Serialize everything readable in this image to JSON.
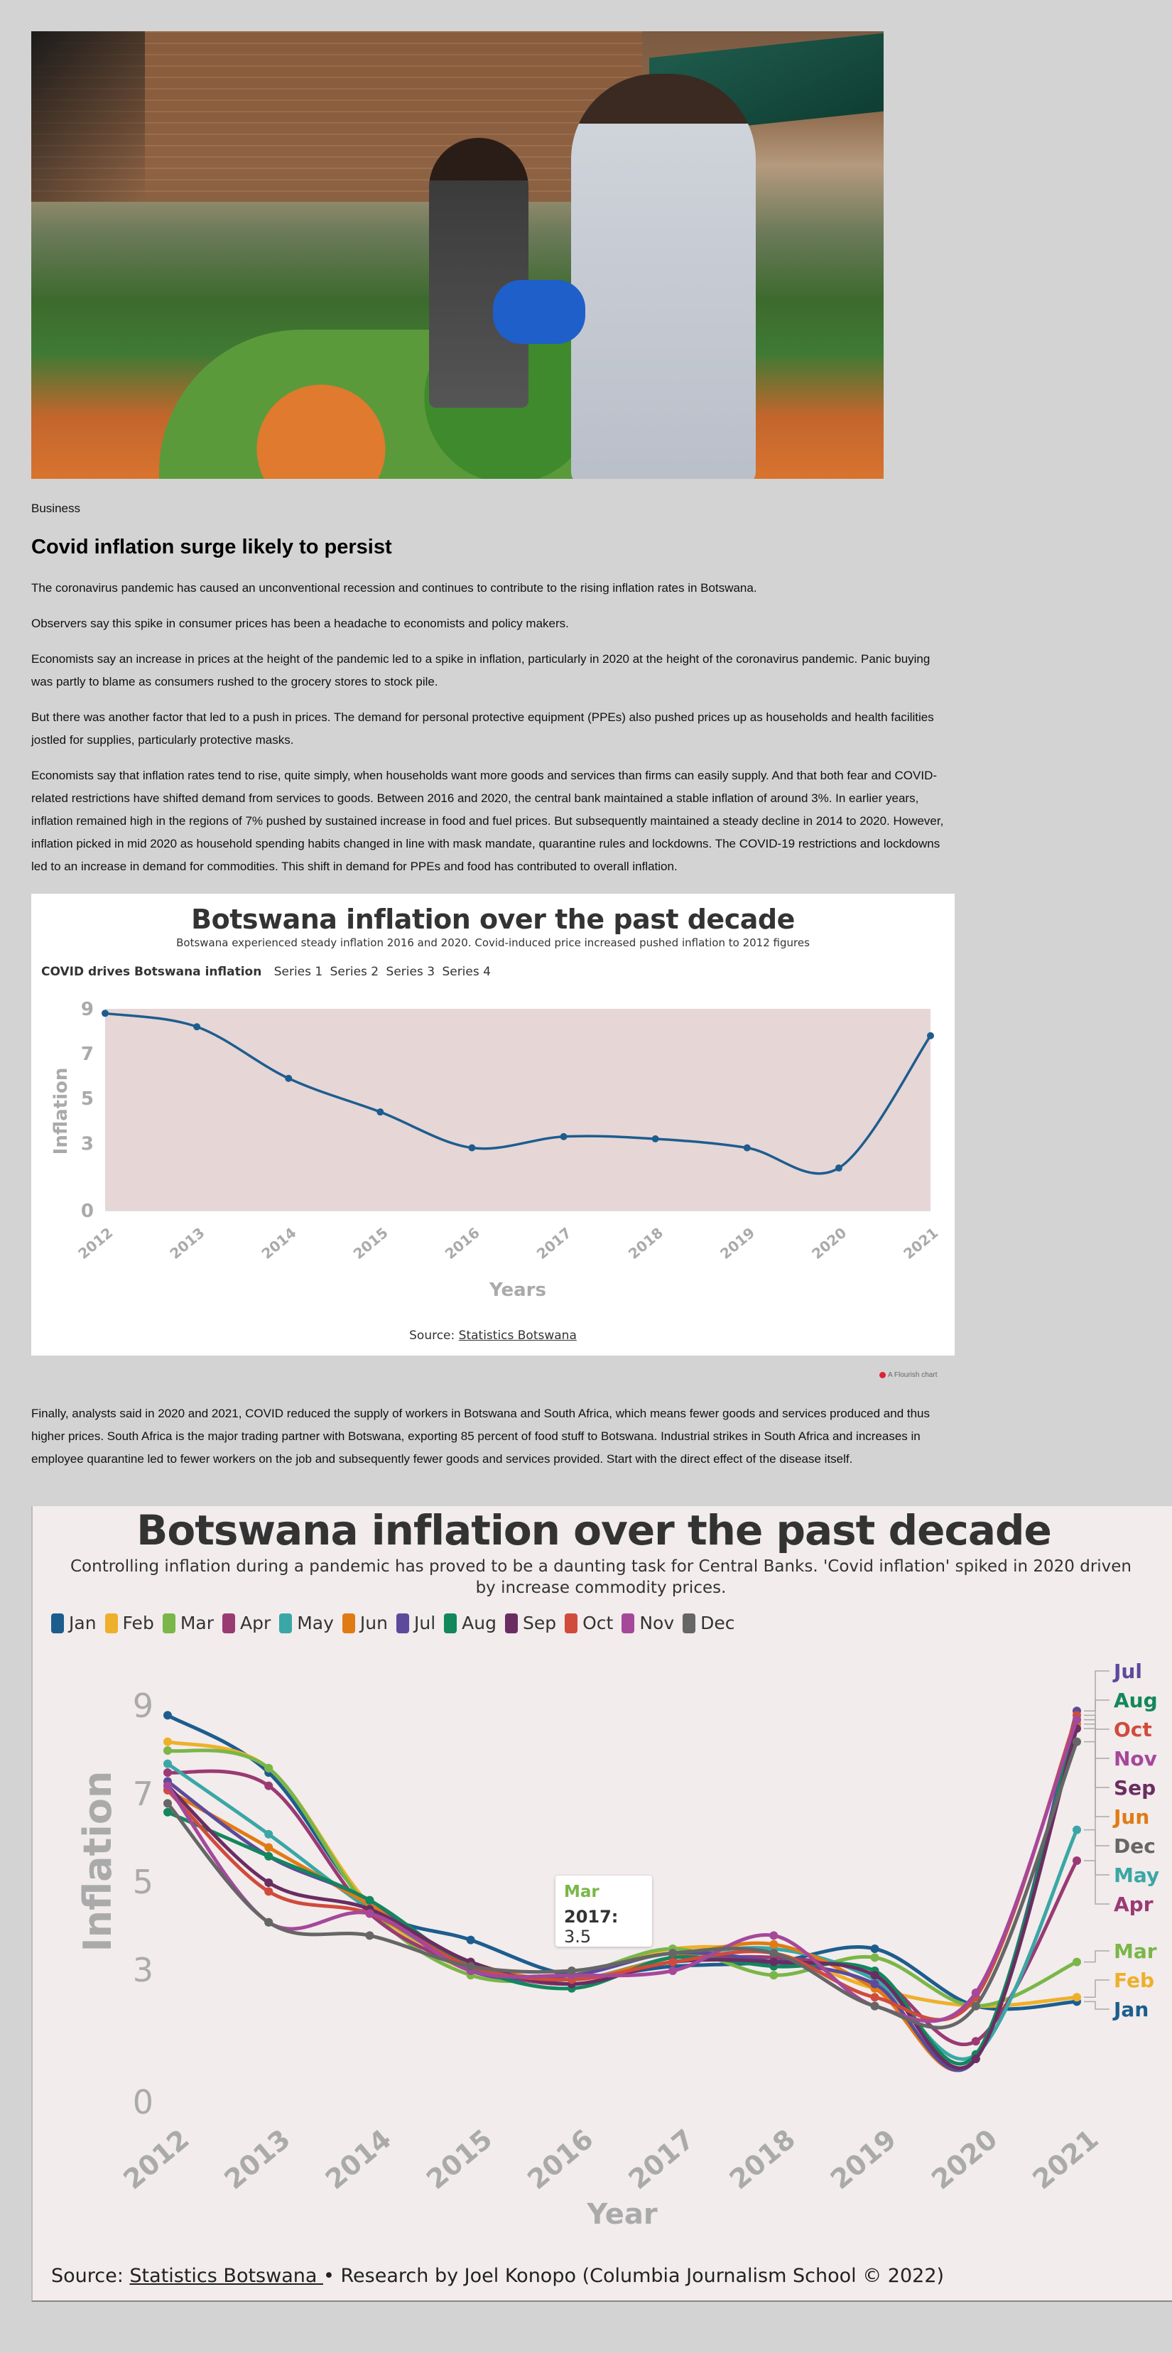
{
  "article": {
    "section": "Business",
    "headline": "Covid inflation surge likely to persist",
    "paragraphs": [
      "The coronavirus pandemic has caused an unconventional recession and continues to contribute to the rising inflation rates in Botswana.",
      "Observers say this spike in consumer prices has been a headache to economists and policy makers.",
      "Economists say an increase in prices at the height of the pandemic led to a spike in inflation, particularly in 2020 at the height of the coronavirus pandemic. Panic buying was partly to blame as consumers rushed to the grocery stores to stock pile.",
      "But there was another factor that led to a push in prices. The demand for personal protective equipment (PPEs) also pushed prices up as households and health facilities jostled for supplies, particularly protective masks.",
      "Economists say that inflation rates tend to rise, quite simply, when households want more goods and services than firms can easily supply. And that both fear and COVID-related restrictions have shifted demand from services to goods. Between 2016 and 2020, the central bank maintained a stable inflation of around 3%. In earlier years, inflation remained high in the regions of 7% pushed by sustained increase in food and fuel prices. But subsequently maintained a steady decline in 2014 to 2020. However, inflation picked in mid 2020 as household spending habits changed in line with mask mandate, quarantine rules and lockdowns. The COVID-19 restrictions and lockdowns led to an increase in demand for commodities. This shift in demand for PPEs and food has contributed to overall inflation.",
      "Finally, analysts said in 2020 and 2021, COVID reduced the supply of workers in Botswana and South Africa, which means fewer goods and services produced and thus higher prices. South Africa is the major trading partner with Botswana, exporting 85 percent of food stuff to Botswana. Industrial strikes in South Africa and increases in employee quarantine led to fewer workers on the job and subsequently fewer goods and services provided. Start with the direct effect of the disease itself."
    ],
    "flourish_credit": "A Flourish chart"
  },
  "chart_data": [
    {
      "type": "line",
      "title": "Botswana inflation over the past decade",
      "subtitle": "Botswana experienced steady inflation 2016 and 2020. Covid-induced price increased pushed inflation to 2012 figures",
      "legend_title": "COVID drives Botswana inflation",
      "legend_series": [
        "Series 1",
        "Series 2",
        "Series 3",
        "Series 4"
      ],
      "xlabel": "Years",
      "ylabel": "Inflation",
      "x": [
        "2012",
        "2013",
        "2014",
        "2015",
        "2016",
        "2017",
        "2018",
        "2019",
        "2020",
        "2021"
      ],
      "y_ticks": [
        0,
        3,
        5,
        7,
        9
      ],
      "ylim": [
        0,
        9
      ],
      "series": [
        {
          "values": [
            8.8,
            8.2,
            5.9,
            4.4,
            2.8,
            3.3,
            3.2,
            2.8,
            1.9,
            7.8
          ],
          "color": "#1d5d8e"
        }
      ],
      "band": {
        "from": 0,
        "to": 9,
        "color": "#e6d6d6"
      },
      "source_prefix": "Source: ",
      "source_link": "Statistics Botswana"
    },
    {
      "type": "line",
      "title": "Botswana inflation over the past decade",
      "subtitle": "Controlling inflation during a pandemic has proved to be a daunting task for Central Banks. 'Covid inflation' spiked in 2020 driven by increase commodity prices.",
      "xlabel": "Year",
      "ylabel": "Inflation",
      "x": [
        "2012",
        "2013",
        "2014",
        "2015",
        "2016",
        "2017",
        "2018",
        "2019",
        "2020",
        "2021"
      ],
      "y_ticks": [
        0,
        3,
        5,
        7,
        9
      ],
      "ylim": [
        0,
        9.5
      ],
      "series": [
        {
          "name": "Jan",
          "color": "#1d5d8e",
          "values": [
            8.8,
            7.5,
            4.5,
            3.7,
            2.9,
            3.1,
            3.2,
            3.5,
            2.2,
            2.3
          ]
        },
        {
          "name": "Feb",
          "color": "#eeb02b",
          "values": [
            8.2,
            7.6,
            4.5,
            3.0,
            2.9,
            3.5,
            3.4,
            2.6,
            2.2,
            2.4
          ]
        },
        {
          "name": "Mar",
          "color": "#7ab648",
          "values": [
            8.0,
            7.6,
            4.4,
            2.9,
            2.9,
            3.5,
            2.9,
            3.3,
            2.2,
            3.2
          ]
        },
        {
          "name": "Apr",
          "color": "#9a3a73",
          "values": [
            7.5,
            7.2,
            4.3,
            3.1,
            2.7,
            3.2,
            3.3,
            2.9,
            1.4,
            5.5
          ]
        },
        {
          "name": "May",
          "color": "#3aa7a6",
          "values": [
            7.7,
            6.1,
            4.4,
            3.1,
            2.8,
            3.3,
            3.5,
            2.8,
            1.1,
            6.2
          ]
        },
        {
          "name": "Jun",
          "color": "#e07b14",
          "values": [
            7.1,
            5.8,
            4.5,
            3.2,
            2.8,
            3.3,
            3.6,
            2.6,
            1.0,
            8.6
          ]
        },
        {
          "name": "Jul",
          "color": "#5c4a9b",
          "values": [
            7.3,
            5.6,
            4.6,
            3.0,
            2.9,
            3.4,
            3.2,
            2.7,
            1.0,
            8.9
          ]
        },
        {
          "name": "Aug",
          "color": "#12875c",
          "values": [
            6.6,
            5.6,
            4.6,
            3.1,
            2.6,
            3.3,
            3.1,
            3.0,
            1.1,
            8.7
          ]
        },
        {
          "name": "Sep",
          "color": "#6a2d62",
          "values": [
            7.2,
            5.0,
            4.4,
            3.2,
            2.7,
            3.2,
            3.2,
            2.9,
            1.0,
            8.5
          ]
        },
        {
          "name": "Oct",
          "color": "#d04b3c",
          "values": [
            7.1,
            4.8,
            4.3,
            3.1,
            2.8,
            3.2,
            3.4,
            2.4,
            2.4,
            8.8
          ]
        },
        {
          "name": "Nov",
          "color": "#a5489a",
          "values": [
            7.2,
            4.1,
            4.3,
            3.0,
            2.9,
            3.0,
            3.8,
            2.2,
            2.5,
            8.7
          ]
        },
        {
          "name": "Dec",
          "color": "#666666",
          "values": [
            6.8,
            4.1,
            3.8,
            3.1,
            3.0,
            3.4,
            3.4,
            2.2,
            2.2,
            8.2
          ]
        }
      ],
      "right_labels_top": [
        "Jul",
        "Aug",
        "Oct",
        "Nov",
        "Sep",
        "Jun",
        "Dec",
        "May",
        "Apr"
      ],
      "right_labels_bottom": [
        "Mar",
        "Feb",
        "Jan"
      ],
      "tooltip": {
        "month": "Mar",
        "year_label": "2017:",
        "value": "3.5"
      },
      "source_prefix": "Source: ",
      "source_link": "Statistics Botswana ",
      "source_suffix": "• Research by Joel Konopo (Columbia Journalism School © 2022)"
    }
  ]
}
